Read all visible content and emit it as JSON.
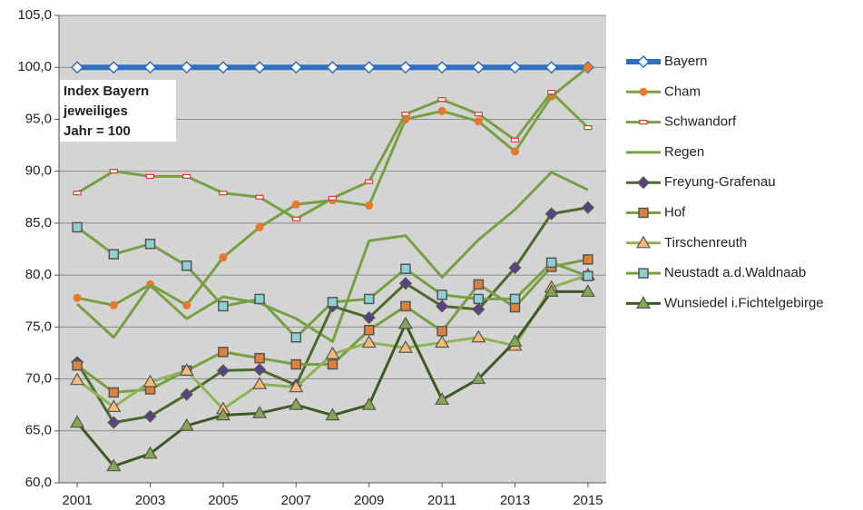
{
  "chart_data": {
    "type": "line",
    "annotation": [
      "Index Bayern",
      "jeweiliges",
      "Jahr = 100"
    ],
    "x": [
      2001,
      2002,
      2003,
      2004,
      2005,
      2006,
      2007,
      2008,
      2009,
      2010,
      2011,
      2012,
      2013,
      2014,
      2015
    ],
    "xlim": [
      2000.5,
      2015.5
    ],
    "xticks": [
      2001,
      2003,
      2005,
      2007,
      2009,
      2011,
      2013,
      2015
    ],
    "ylim": [
      60,
      105
    ],
    "yticks": [
      {
        "value": 60,
        "label": "60,0"
      },
      {
        "value": 65,
        "label": "65,0"
      },
      {
        "value": 70,
        "label": "70,0"
      },
      {
        "value": 75,
        "label": "75,0"
      },
      {
        "value": 80,
        "label": "80,0"
      },
      {
        "value": 85,
        "label": "85,0"
      },
      {
        "value": 90,
        "label": "90,0"
      },
      {
        "value": 95,
        "label": "95,0"
      },
      {
        "value": 100,
        "label": "100,0"
      },
      {
        "value": 105,
        "label": "105,0"
      }
    ],
    "grid": true,
    "legend": "right",
    "series": [
      {
        "name": "Bayern",
        "color": "#2e6fc0",
        "marker": "diamond",
        "marker_color": "#ffffff",
        "values": [
          100,
          100,
          100,
          100,
          100,
          100,
          100,
          100,
          100,
          100,
          100,
          100,
          100,
          100,
          100
        ]
      },
      {
        "name": "Cham",
        "color": "#77a043",
        "marker": "circle",
        "marker_color": "#e8792a",
        "values": [
          77.8,
          77.1,
          79.1,
          77.1,
          81.7,
          84.6,
          86.8,
          87.2,
          86.7,
          95.0,
          95.8,
          94.8,
          91.9,
          97.2,
          100.0
        ]
      },
      {
        "name": "Schwandorf",
        "color": "#77a043",
        "marker": "dash",
        "marker_color": "#e03a2a",
        "values": [
          87.9,
          90.0,
          89.5,
          89.5,
          87.9,
          87.5,
          85.4,
          87.4,
          89.0,
          95.5,
          96.9,
          95.5,
          93.0,
          97.6,
          94.2
        ]
      },
      {
        "name": "Regen",
        "color": "#77a043",
        "marker": "none",
        "marker_color": "#77a043",
        "values": [
          77.2,
          74.0,
          79.0,
          75.8,
          77.9,
          77.3,
          75.8,
          73.6,
          83.3,
          83.8,
          79.8,
          83.4,
          86.3,
          89.9,
          88.2
        ]
      },
      {
        "name": "Freyung-Grafenau",
        "color": "#4d6a2a",
        "marker": "diamond",
        "marker_color": "#5b3f8a",
        "values": [
          71.6,
          65.8,
          66.4,
          68.5,
          70.8,
          70.9,
          69.4,
          77.0,
          75.9,
          79.2,
          77.0,
          76.7,
          80.7,
          85.9,
          86.5
        ]
      },
      {
        "name": "Hof",
        "color": "#77a043",
        "marker": "square",
        "marker_color": "#e0803a",
        "values": [
          71.3,
          68.7,
          69.0,
          70.8,
          72.6,
          72.0,
          71.4,
          71.4,
          74.7,
          77.0,
          74.6,
          79.1,
          76.9,
          80.8,
          81.5
        ]
      },
      {
        "name": "Tirschenreuth",
        "color": "#8db352",
        "marker": "triangle",
        "marker_color": "#f7b97a",
        "values": [
          69.9,
          67.3,
          69.7,
          70.8,
          67.1,
          69.5,
          69.2,
          72.4,
          73.5,
          73.0,
          73.5,
          74.0,
          73.2,
          78.8,
          80.0
        ]
      },
      {
        "name": "Neustadt a.d.Waldnaab",
        "color": "#77a043",
        "marker": "square",
        "marker_color": "#8fd0d2",
        "values": [
          84.6,
          82.0,
          83.0,
          80.9,
          77.0,
          77.7,
          74.0,
          77.4,
          77.7,
          80.6,
          78.1,
          77.7,
          77.7,
          81.2,
          79.9
        ]
      },
      {
        "name": "Wunsiedel i.Fichtelgebirge",
        "color": "#3d5a24",
        "marker": "triangle",
        "marker_color": "#86a650",
        "values": [
          65.8,
          61.6,
          62.8,
          65.5,
          66.5,
          66.7,
          67.5,
          66.5,
          67.5,
          75.3,
          68.0,
          70.0,
          73.6,
          78.4,
          78.4
        ]
      }
    ]
  }
}
